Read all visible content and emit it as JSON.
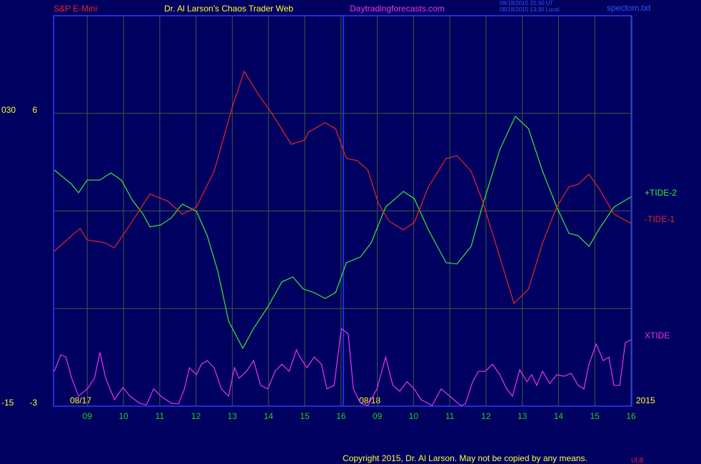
{
  "chart_data": {
    "type": "line",
    "title": "Dr. Al Larson's Chaos Trader Web",
    "instrument": "S&P E-Mini",
    "website": "Daytradingforecasts.com",
    "timestamps": [
      "08/18/2015 20:30 UT",
      "08/18/2015 13:30 Local"
    ],
    "file_name": "spectom.txt",
    "copyright": "Copyright 2015, Dr. Al Larson. May not be copied by any means.",
    "footer_mark": "ULB",
    "date_labels": [
      "08/17",
      "08/18"
    ],
    "year_label": "2015",
    "xlim": [
      -0.93,
      15.02
    ],
    "xticks": [
      {
        "value": 0,
        "label": "09"
      },
      {
        "value": 1,
        "label": "10"
      },
      {
        "value": 2,
        "label": "11"
      },
      {
        "value": 3,
        "label": "12"
      },
      {
        "value": 4,
        "label": "13"
      },
      {
        "value": 5,
        "label": "14"
      },
      {
        "value": 6,
        "label": "15"
      },
      {
        "value": 7,
        "label": "16"
      },
      {
        "value": 8,
        "label": "09"
      },
      {
        "value": 9,
        "label": "10"
      },
      {
        "value": 10,
        "label": "11"
      },
      {
        "value": 11,
        "label": "12"
      },
      {
        "value": 12,
        "label": "13"
      },
      {
        "value": 13,
        "label": "14"
      },
      {
        "value": 14,
        "label": "15"
      },
      {
        "value": 15,
        "label": "16"
      }
    ],
    "ylim": [
      -3,
      9
    ],
    "yticks": [
      -3,
      6
    ],
    "ygrid": [
      0,
      3,
      6
    ],
    "y2lim": [
      -15,
      45
    ],
    "y2ticks": [
      {
        "value": -15,
        "label": "-15"
      },
      {
        "value": 30,
        "label": "030"
      }
    ],
    "grid": true,
    "series": [
      {
        "name": "+TIDE-2",
        "color": "#33ee33",
        "x": [
          -0.91,
          -0.43,
          -0.24,
          0,
          0.35,
          0.65,
          0.94,
          1.24,
          1.54,
          1.73,
          2.03,
          2.32,
          2.62,
          3.01,
          3.31,
          3.6,
          3.9,
          4.29,
          4.59,
          4.98,
          5.37,
          5.67,
          5.96,
          6.26,
          6.56,
          6.85,
          7.15,
          7.54,
          7.83,
          8.23,
          8.72,
          9.02,
          9.41,
          9.9,
          10.2,
          10.59,
          10.89,
          11.38,
          11.81,
          12.17,
          12.56,
          12.95,
          13.29,
          13.54,
          13.84,
          14.13,
          14.53,
          15.0
        ],
        "values": [
          4.26,
          3.82,
          3.56,
          3.95,
          3.95,
          4.17,
          3.95,
          3.34,
          2.9,
          2.51,
          2.57,
          2.79,
          3.21,
          2.99,
          2.24,
          1.15,
          -0.39,
          -1.22,
          -0.61,
          0.05,
          0.82,
          0.97,
          0.6,
          0.49,
          0.31,
          0.49,
          1.41,
          1.59,
          2.02,
          3.12,
          3.6,
          3.38,
          2.42,
          1.41,
          1.37,
          1.91,
          3.12,
          4.88,
          5.91,
          5.53,
          4.22,
          3.12,
          2.31,
          2.24,
          1.91,
          2.46,
          3.12,
          3.43
        ]
      },
      {
        "name": "-TIDE-1",
        "color": "#ee2222",
        "x": [
          -0.91,
          -0.43,
          -0.2,
          0,
          0.49,
          0.75,
          1.24,
          1.73,
          2.22,
          2.62,
          3.01,
          3.5,
          4.0,
          4.33,
          4.69,
          5.08,
          5.63,
          6.0,
          6.1,
          6.56,
          6.85,
          7.15,
          7.44,
          7.74,
          8.03,
          8.33,
          8.72,
          9.02,
          9.41,
          9.9,
          10.2,
          10.59,
          10.89,
          11.38,
          11.77,
          12.17,
          12.56,
          12.95,
          13.29,
          13.54,
          13.84,
          14.13,
          14.53,
          15.0
        ],
        "values": [
          1.76,
          2.24,
          2.46,
          2.11,
          2.02,
          1.87,
          2.68,
          3.52,
          3.3,
          2.9,
          3.12,
          4.22,
          6.19,
          7.29,
          6.63,
          6.02,
          5.05,
          5.18,
          5.42,
          5.71,
          5.53,
          4.61,
          4.55,
          4.26,
          3.23,
          2.68,
          2.42,
          2.64,
          3.74,
          4.61,
          4.7,
          4.22,
          3.34,
          1.59,
          0.16,
          0.6,
          2.02,
          3.12,
          3.74,
          3.82,
          4.13,
          3.67,
          2.9,
          2.62
        ]
      },
      {
        "name": "XTIDE",
        "color": "#ee33ee",
        "x": [
          -0.91,
          -0.73,
          -0.59,
          -0.43,
          -0.24,
          0,
          0.2,
          0.35,
          0.51,
          0.75,
          0.98,
          1.18,
          1.44,
          1.63,
          1.83,
          2.03,
          2.32,
          2.52,
          2.68,
          2.82,
          3.01,
          3.15,
          3.31,
          3.5,
          3.7,
          3.9,
          4.06,
          4.19,
          4.39,
          4.59,
          4.78,
          4.98,
          5.18,
          5.37,
          5.57,
          5.77,
          5.87,
          6.06,
          6.26,
          6.46,
          6.61,
          6.81,
          7.01,
          7.2,
          7.34,
          7.54,
          7.74,
          7.99,
          8.23,
          8.43,
          8.62,
          8.82,
          9.02,
          9.21,
          9.51,
          9.76,
          10.0,
          10.3,
          10.43,
          10.63,
          10.79,
          10.98,
          11.18,
          11.38,
          11.57,
          11.73,
          11.93,
          12.13,
          12.26,
          12.4,
          12.56,
          12.76,
          12.95,
          13.15,
          13.35,
          13.54,
          13.7,
          13.84,
          14.04,
          14.23,
          14.39,
          14.53,
          14.69,
          14.84,
          15.0
        ],
        "values": [
          -1.93,
          -1.42,
          -1.49,
          -2.14,
          -2.69,
          -2.47,
          -2.14,
          -1.35,
          -2.14,
          -2.8,
          -2.43,
          -2.69,
          -2.91,
          -2.96,
          -2.47,
          -2.69,
          -2.91,
          -2.93,
          -2.47,
          -1.82,
          -2.03,
          -1.71,
          -1.6,
          -1.82,
          -2.47,
          -2.69,
          -1.82,
          -2.14,
          -1.93,
          -1.6,
          -2.36,
          -2.47,
          -1.93,
          -1.71,
          -1.93,
          -1.27,
          -1.49,
          -1.82,
          -1.49,
          -1.71,
          -2.47,
          -2.36,
          -0.61,
          -0.78,
          -2.47,
          -2.91,
          -2.98,
          -2.47,
          -1.49,
          -2.36,
          -2.54,
          -2.25,
          -2.47,
          -2.8,
          -2.98,
          -2.47,
          -2.69,
          -2.98,
          -2.93,
          -2.25,
          -1.93,
          -1.93,
          -1.71,
          -2.03,
          -2.47,
          -2.69,
          -1.88,
          -2.25,
          -2.03,
          -2.36,
          -1.93,
          -2.3,
          -2.03,
          -2.08,
          -1.99,
          -2.36,
          -2.47,
          -1.71,
          -1.09,
          -1.6,
          -1.49,
          -2.36,
          -2.36,
          -1.05,
          -0.96
        ]
      }
    ]
  }
}
